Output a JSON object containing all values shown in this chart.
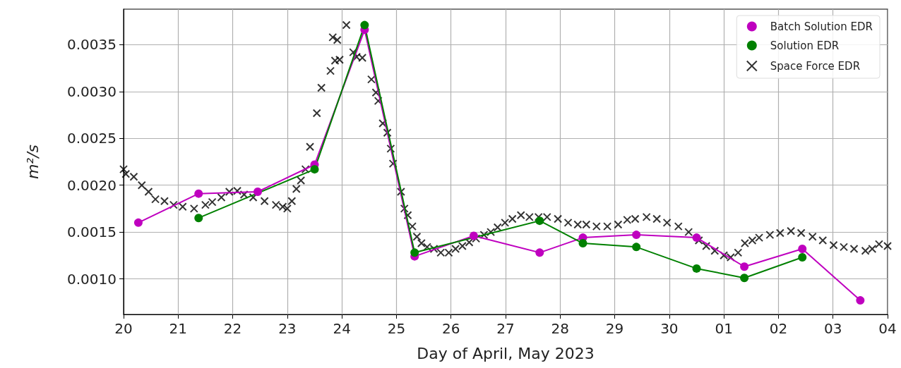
{
  "chart_data": {
    "type": "line",
    "xlabel": "Day of April, May 2023",
    "ylabel": "m²/s",
    "xlim": [
      "2023-04-20",
      "2023-05-04"
    ],
    "ylim": [
      0.00062,
      0.00388
    ],
    "xticks": [
      {
        "value": "2023-04-20",
        "label": "20"
      },
      {
        "value": "2023-04-21",
        "label": "21"
      },
      {
        "value": "2023-04-22",
        "label": "22"
      },
      {
        "value": "2023-04-23",
        "label": "23"
      },
      {
        "value": "2023-04-24",
        "label": "24"
      },
      {
        "value": "2023-04-25",
        "label": "25"
      },
      {
        "value": "2023-04-26",
        "label": "26"
      },
      {
        "value": "2023-04-27",
        "label": "27"
      },
      {
        "value": "2023-04-28",
        "label": "28"
      },
      {
        "value": "2023-04-29",
        "label": "29"
      },
      {
        "value": "2023-04-30",
        "label": "30"
      },
      {
        "value": "2023-05-01",
        "label": "01"
      },
      {
        "value": "2023-05-02",
        "label": "02"
      },
      {
        "value": "2023-05-03",
        "label": "03"
      },
      {
        "value": "2023-05-04",
        "label": "04"
      }
    ],
    "yticks": [
      {
        "value": 0.001,
        "label": "0.0010"
      },
      {
        "value": 0.0015,
        "label": "0.0015"
      },
      {
        "value": 0.002,
        "label": "0.0020"
      },
      {
        "value": 0.0025,
        "label": "0.0025"
      },
      {
        "value": 0.003,
        "label": "0.0030"
      },
      {
        "value": 0.0035,
        "label": "0.0035"
      }
    ],
    "grid": true,
    "legend": "top right",
    "line_style": "solid",
    "series": [
      {
        "name": "Batch Solution EDR",
        "marker": "circle",
        "color": "#bf00bf",
        "x": [
          "2023-04-20T06:30",
          "2023-04-21T09:00",
          "2023-04-22T11:00",
          "2023-04-23T12:00",
          "2023-04-24T10:00",
          "2023-04-25T08:00",
          "2023-04-26T10:00",
          "2023-04-27T15:00",
          "2023-04-28T10:00",
          "2023-04-29T09:30",
          "2023-04-30T12:00",
          "2023-05-01T09:00",
          "2023-05-02T10:30",
          "2023-05-03T12:00"
        ],
        "values": [
          0.0016,
          0.00191,
          0.00193,
          0.00222,
          0.00366,
          0.00124,
          0.00146,
          0.00128,
          0.00144,
          0.00147,
          0.00144,
          0.00113,
          0.00132,
          0.00077
        ]
      },
      {
        "name": "Solution EDR",
        "marker": "circle",
        "color": "#008000",
        "x": [
          "2023-04-21T09:00",
          "2023-04-23T12:00",
          "2023-04-24T10:00",
          "2023-04-25T08:00",
          "2023-04-27T15:00",
          "2023-04-28T10:00",
          "2023-04-29T09:30",
          "2023-04-30T12:00",
          "2023-05-01T09:00",
          "2023-05-02T10:30"
        ],
        "values": [
          0.00165,
          0.00217,
          0.00371,
          0.00128,
          0.00162,
          0.00138,
          0.00134,
          0.00111,
          0.00101,
          0.00123
        ]
      },
      {
        "name": "Space Force EDR",
        "type": "scatter",
        "marker": "cross",
        "color": "#000000",
        "x": [
          "2023-04-20T00:00",
          "2023-04-20T01:00",
          "2023-04-20T04:30",
          "2023-04-20T08:00",
          "2023-04-20T11:00",
          "2023-04-20T14:00",
          "2023-04-20T18:00",
          "2023-04-20T22:00",
          "2023-04-21T02:00",
          "2023-04-21T07:00",
          "2023-04-21T12:00",
          "2023-04-21T15:00",
          "2023-04-21T19:00",
          "2023-04-21T22:30",
          "2023-04-22T02:00",
          "2023-04-22T05:00",
          "2023-04-22T09:00",
          "2023-04-22T14:00",
          "2023-04-22T19:00",
          "2023-04-22T22:00",
          "2023-04-23T00:00",
          "2023-04-23T02:00",
          "2023-04-23T04:00",
          "2023-04-23T06:00",
          "2023-04-23T08:00",
          "2023-04-23T10:00",
          "2023-04-23T13:00",
          "2023-04-23T15:00",
          "2023-04-23T19:00",
          "2023-04-23T20:00",
          "2023-04-23T21:00",
          "2023-04-23T22:00",
          "2023-04-23T23:00",
          "2023-04-24T02:00",
          "2023-04-24T05:00",
          "2023-04-24T06:30",
          "2023-04-24T09:00",
          "2023-04-24T13:00",
          "2023-04-24T15:00",
          "2023-04-24T16:00",
          "2023-04-24T18:00",
          "2023-04-24T20:00",
          "2023-04-24T21:30",
          "2023-04-24T22:30",
          "2023-04-25T02:00",
          "2023-04-25T03:30",
          "2023-04-25T05:00",
          "2023-04-25T07:00",
          "2023-04-25T09:00",
          "2023-04-25T11:00",
          "2023-04-25T13:30",
          "2023-04-25T16:30",
          "2023-04-25T19:30",
          "2023-04-25T23:00",
          "2023-04-26T02:00",
          "2023-04-26T05:00",
          "2023-04-26T08:00",
          "2023-04-26T11:00",
          "2023-04-26T14:30",
          "2023-04-26T17:30",
          "2023-04-26T20:30",
          "2023-04-26T23:45",
          "2023-04-27T03:00",
          "2023-04-27T06:45",
          "2023-04-27T10:30",
          "2023-04-27T14:30",
          "2023-04-27T18:15",
          "2023-04-27T23:00",
          "2023-04-28T03:30",
          "2023-04-28T07:45",
          "2023-04-28T11:30",
          "2023-04-28T16:00",
          "2023-04-28T20:45",
          "2023-04-29T01:30",
          "2023-04-29T05:30",
          "2023-04-29T09:00",
          "2023-04-29T14:00",
          "2023-04-29T18:30",
          "2023-04-29T23:00",
          "2023-04-30T04:00",
          "2023-04-30T08:30",
          "2023-04-30T13:00",
          "2023-04-30T16:15",
          "2023-04-30T20:00",
          "2023-05-01T00:00",
          "2023-05-01T03:00",
          "2023-05-01T06:15",
          "2023-05-01T09:15",
          "2023-05-01T12:30",
          "2023-05-01T15:30",
          "2023-05-01T20:15",
          "2023-05-02T00:45",
          "2023-05-02T05:30",
          "2023-05-02T10:00",
          "2023-05-02T15:00",
          "2023-05-02T19:30",
          "2023-05-03T00:15",
          "2023-05-03T04:45",
          "2023-05-03T09:15",
          "2023-05-03T14:15",
          "2023-05-03T17:15",
          "2023-05-03T20:15",
          "2023-05-04T00:00"
        ],
        "values": [
          0.00217,
          0.00212,
          0.00209,
          0.002,
          0.00193,
          0.00185,
          0.00183,
          0.00179,
          0.00177,
          0.00175,
          0.00179,
          0.00182,
          0.00187,
          0.00193,
          0.00194,
          0.0019,
          0.00187,
          0.00183,
          0.00179,
          0.00177,
          0.00175,
          0.00183,
          0.00196,
          0.00205,
          0.00217,
          0.00241,
          0.00277,
          0.00304,
          0.00322,
          0.00358,
          0.00333,
          0.00355,
          0.00334,
          0.00371,
          0.00342,
          0.00337,
          0.00336,
          0.00313,
          0.00299,
          0.0029,
          0.00266,
          0.00256,
          0.00239,
          0.00223,
          0.00193,
          0.00175,
          0.00168,
          0.00156,
          0.00145,
          0.00138,
          0.00134,
          0.00132,
          0.00128,
          0.00128,
          0.00132,
          0.00135,
          0.00139,
          0.00143,
          0.00147,
          0.0015,
          0.00155,
          0.0016,
          0.00164,
          0.00168,
          0.00166,
          0.00166,
          0.00166,
          0.00164,
          0.0016,
          0.00158,
          0.00158,
          0.00156,
          0.00156,
          0.00158,
          0.00163,
          0.00164,
          0.00166,
          0.00164,
          0.0016,
          0.00156,
          0.0015,
          0.00141,
          0.00135,
          0.0013,
          0.00125,
          0.00123,
          0.00128,
          0.00138,
          0.00141,
          0.00144,
          0.00147,
          0.00149,
          0.00151,
          0.00149,
          0.00145,
          0.00141,
          0.00136,
          0.00134,
          0.00132,
          0.0013,
          0.00132,
          0.00137,
          0.00135
        ]
      }
    ]
  }
}
